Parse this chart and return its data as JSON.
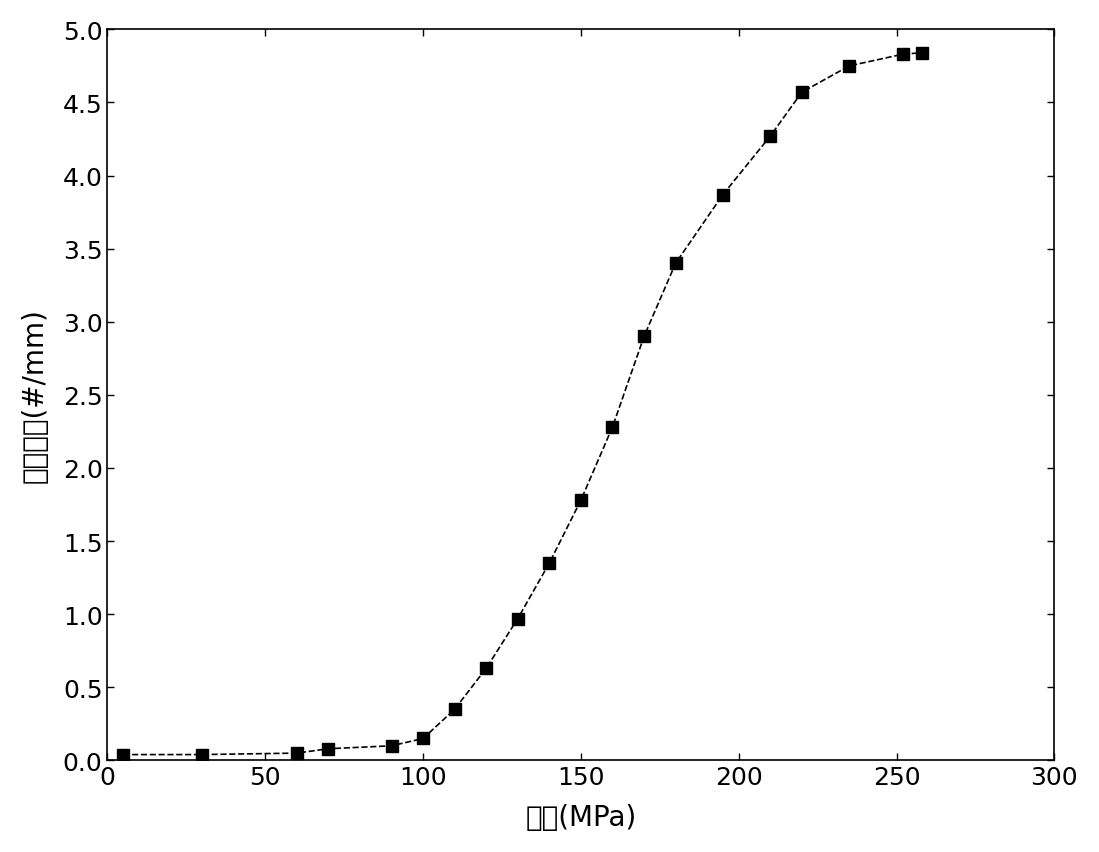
{
  "x": [
    5,
    30,
    60,
    70,
    90,
    100,
    110,
    120,
    130,
    140,
    150,
    160,
    170,
    180,
    195,
    210,
    220,
    235,
    252,
    258
  ],
  "y": [
    0.04,
    0.04,
    0.05,
    0.08,
    0.1,
    0.15,
    0.35,
    0.63,
    0.97,
    1.35,
    1.78,
    2.28,
    2.9,
    3.4,
    3.87,
    4.27,
    4.57,
    4.75,
    4.83,
    4.84
  ],
  "xlabel": "载荷(MPa)",
  "ylabel": "裂纹密度(#/mm)",
  "xlim": [
    0,
    300
  ],
  "ylim": [
    0,
    5.0
  ],
  "xticks": [
    0,
    50,
    100,
    150,
    200,
    250,
    300
  ],
  "yticks": [
    0.0,
    0.5,
    1.0,
    1.5,
    2.0,
    2.5,
    3.0,
    3.5,
    4.0,
    4.5,
    5.0
  ],
  "line_color": "#000000",
  "marker": "s",
  "marker_size": 8,
  "line_width": 1.2,
  "line_style": "--",
  "background_color": "#ffffff",
  "xlabel_fontsize": 20,
  "ylabel_fontsize": 20,
  "tick_fontsize": 18
}
